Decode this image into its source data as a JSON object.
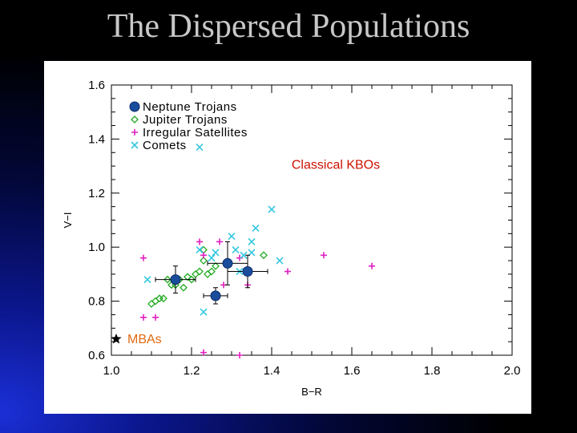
{
  "slide": {
    "title": "The Dispersed Populations"
  },
  "colors": {
    "neptune_trojans": "#1a4d9c",
    "jupiter_trojans": "#22aa22",
    "irregular_satellites": "#e020c0",
    "comets": "#33c8e0",
    "classical_label": "#cc1100",
    "mba_label": "#e06a10"
  },
  "chart_data": {
    "type": "scatter",
    "xlabel": "B−R",
    "ylabel": "V−I",
    "xlim": [
      1.0,
      2.0
    ],
    "ylim": [
      0.6,
      1.6
    ],
    "xticks": [
      "1.0",
      "1.2",
      "1.4",
      "1.6",
      "1.8",
      "2.0"
    ],
    "yticks": [
      "0.6",
      "0.8",
      "1.0",
      "1.2",
      "1.4",
      "1.6"
    ],
    "grid": false,
    "legend_position": "top-left",
    "annotations": [
      {
        "text": "Classical KBOs",
        "x": 1.56,
        "y": 1.29
      },
      {
        "text": "MBAs",
        "x": 1.04,
        "y": 0.645
      }
    ],
    "series": [
      {
        "name": "Neptune Trojans",
        "marker": "filled-circle",
        "points": [
          {
            "x": 1.16,
            "y": 0.88,
            "xerr": 0.05,
            "yerr": 0.05
          },
          {
            "x": 1.26,
            "y": 0.82,
            "xerr": 0.03,
            "yerr": 0.03
          },
          {
            "x": 1.29,
            "y": 0.94,
            "xerr": 0.05,
            "yerr": 0.08
          },
          {
            "x": 1.34,
            "y": 0.91,
            "xerr": 0.05,
            "yerr": 0.06
          }
        ]
      },
      {
        "name": "Jupiter Trojans",
        "marker": "open-diamond",
        "points": [
          {
            "x": 1.1,
            "y": 0.79
          },
          {
            "x": 1.11,
            "y": 0.8
          },
          {
            "x": 1.12,
            "y": 0.81
          },
          {
            "x": 1.13,
            "y": 0.81
          },
          {
            "x": 1.14,
            "y": 0.88
          },
          {
            "x": 1.15,
            "y": 0.86
          },
          {
            "x": 1.16,
            "y": 0.86
          },
          {
            "x": 1.17,
            "y": 0.88
          },
          {
            "x": 1.18,
            "y": 0.85
          },
          {
            "x": 1.19,
            "y": 0.89
          },
          {
            "x": 1.2,
            "y": 0.88
          },
          {
            "x": 1.21,
            "y": 0.9
          },
          {
            "x": 1.22,
            "y": 0.91
          },
          {
            "x": 1.23,
            "y": 0.95
          },
          {
            "x": 1.23,
            "y": 0.99
          },
          {
            "x": 1.24,
            "y": 0.9
          },
          {
            "x": 1.25,
            "y": 0.91
          },
          {
            "x": 1.26,
            "y": 0.93
          },
          {
            "x": 1.38,
            "y": 0.97
          }
        ]
      },
      {
        "name": "Irregular Satellites",
        "marker": "plus",
        "points": [
          {
            "x": 1.08,
            "y": 0.96
          },
          {
            "x": 1.08,
            "y": 0.74
          },
          {
            "x": 1.11,
            "y": 0.74
          },
          {
            "x": 1.22,
            "y": 1.02
          },
          {
            "x": 1.23,
            "y": 0.97
          },
          {
            "x": 1.23,
            "y": 0.61
          },
          {
            "x": 1.27,
            "y": 1.02
          },
          {
            "x": 1.28,
            "y": 0.86
          },
          {
            "x": 1.32,
            "y": 0.96
          },
          {
            "x": 1.32,
            "y": 0.6
          },
          {
            "x": 1.34,
            "y": 0.86
          },
          {
            "x": 1.44,
            "y": 0.91
          },
          {
            "x": 1.53,
            "y": 0.97
          },
          {
            "x": 1.65,
            "y": 0.93
          }
        ]
      },
      {
        "name": "Comets",
        "marker": "x",
        "points": [
          {
            "x": 1.09,
            "y": 0.88
          },
          {
            "x": 1.22,
            "y": 1.37
          },
          {
            "x": 1.22,
            "y": 0.99
          },
          {
            "x": 1.23,
            "y": 0.76
          },
          {
            "x": 1.25,
            "y": 0.96
          },
          {
            "x": 1.26,
            "y": 0.98
          },
          {
            "x": 1.3,
            "y": 1.04
          },
          {
            "x": 1.31,
            "y": 0.99
          },
          {
            "x": 1.32,
            "y": 0.91
          },
          {
            "x": 1.33,
            "y": 0.97
          },
          {
            "x": 1.35,
            "y": 0.98
          },
          {
            "x": 1.35,
            "y": 1.02
          },
          {
            "x": 1.36,
            "y": 1.07
          },
          {
            "x": 1.4,
            "y": 1.14
          },
          {
            "x": 1.42,
            "y": 0.95
          }
        ]
      }
    ]
  }
}
